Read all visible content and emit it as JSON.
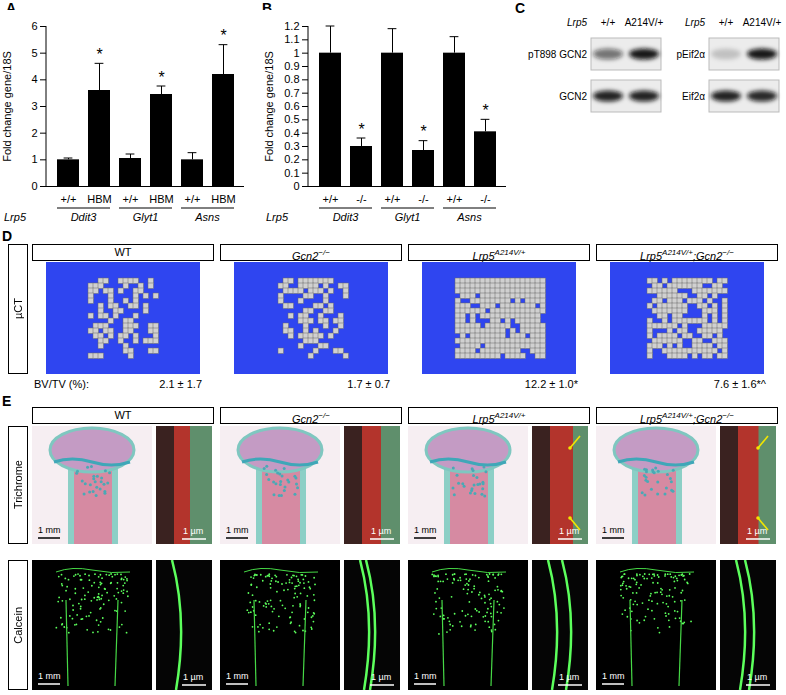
{
  "chart_data": [
    {
      "type": "bar",
      "panel": "A",
      "categories": [
        "+/+",
        "HBM",
        "+/+",
        "HBM",
        "+/+",
        "HBM"
      ],
      "groups": [
        "Ddit3",
        "Glyt1",
        "Asns"
      ],
      "group_label": "Lrp5",
      "values": [
        1,
        3.6,
        1.05,
        3.45,
        1,
        4.2
      ],
      "errors": [
        0.05,
        1.0,
        0.15,
        0.3,
        0.25,
        1.1
      ],
      "annotations": [
        null,
        "*",
        null,
        "*",
        null,
        "*"
      ],
      "y_label": "Fold change gene/18S",
      "ylim": [
        0,
        6
      ],
      "yticks": [
        0,
        1,
        2,
        3,
        4,
        5,
        6
      ],
      "color": "#000000"
    },
    {
      "type": "bar",
      "panel": "B",
      "categories": [
        "+/+",
        "-/-",
        "+/+",
        "-/-",
        "+/+",
        "-/-"
      ],
      "groups": [
        "Ddit3",
        "Glyt1",
        "Asns"
      ],
      "group_label": "Lrp5",
      "values": [
        1,
        0.3,
        1,
        0.27,
        1,
        0.41
      ],
      "errors": [
        0.2,
        0.06,
        0.18,
        0.07,
        0.12,
        0.09
      ],
      "annotations": [
        null,
        "*",
        null,
        "*",
        null,
        "*"
      ],
      "y_label": "Fold change gene/18S",
      "ylim": [
        0,
        1.2
      ],
      "yticks": [
        0,
        0.1,
        0.2,
        0.3,
        0.4,
        0.5,
        0.6,
        0.7,
        0.8,
        0.9,
        1,
        1.1,
        1.2
      ],
      "color": "#000000"
    }
  ],
  "figure": {
    "C": {
      "panel": "C",
      "genotype_label": "Lrp5",
      "lanes": [
        "+/+",
        "A214V/+"
      ],
      "blots": [
        {
          "rows": [
            "pT898 GCN2",
            "GCN2"
          ]
        },
        {
          "rows": [
            "pEif2α",
            "Eif2α"
          ]
        }
      ]
    },
    "D": {
      "panel": "D",
      "row_label": "µCT",
      "measure_label": "BV/TV (%):",
      "columns": [
        {
          "title": {
            "italic": false,
            "segments": [
              {
                "text": "WT"
              }
            ]
          },
          "value": "2.1 ± 1.7"
        },
        {
          "title": {
            "italic": true,
            "segments": [
              {
                "text": "Gcn2"
              },
              {
                "sup": "−/−"
              }
            ]
          },
          "value": "1.7 ± 0.7"
        },
        {
          "title": {
            "italic": true,
            "segments": [
              {
                "text": "Lrp5"
              },
              {
                "sup": "A214V/+"
              }
            ]
          },
          "value": "12.2 ± 1.0*"
        },
        {
          "title": {
            "italic": true,
            "segments": [
              {
                "text": "Lrp5"
              },
              {
                "sup": "A214V/+"
              },
              {
                "text": ";Gcn2"
              },
              {
                "sup": "−/−"
              }
            ]
          },
          "value": "7.6 ± 1.6*^"
        }
      ]
    },
    "E": {
      "panel": "E",
      "rows": [
        "Trichrome",
        "Calcein"
      ],
      "scale_bars": [
        "1 mm",
        "1 µm"
      ],
      "columns": [
        {
          "title": {
            "italic": false,
            "segments": [
              {
                "text": "WT"
              }
            ]
          },
          "arrows": false
        },
        {
          "title": {
            "italic": true,
            "segments": [
              {
                "text": "Gcn2"
              },
              {
                "sup": "−/−"
              }
            ]
          },
          "arrows": false
        },
        {
          "title": {
            "italic": true,
            "segments": [
              {
                "text": "Lrp5"
              },
              {
                "sup": "A214V/+"
              }
            ]
          },
          "arrows": true
        },
        {
          "title": {
            "italic": true,
            "segments": [
              {
                "text": "Lrp5"
              },
              {
                "sup": "A214V/+"
              },
              {
                "text": ";Gcn2"
              },
              {
                "sup": "−/−"
              }
            ]
          },
          "arrows": true
        }
      ]
    }
  }
}
